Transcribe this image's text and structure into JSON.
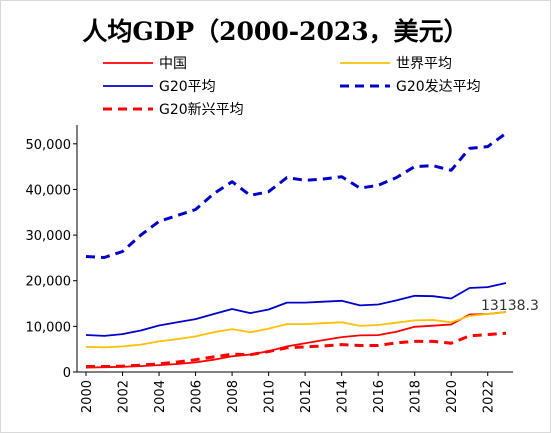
{
  "chart_data": {
    "type": "line",
    "title": "人均GDP（2000-2023，美元）",
    "xlabel": "",
    "ylabel": "",
    "x": [
      2000,
      2001,
      2002,
      2003,
      2004,
      2005,
      2006,
      2007,
      2008,
      2009,
      2010,
      2011,
      2012,
      2013,
      2014,
      2015,
      2016,
      2017,
      2018,
      2019,
      2020,
      2021,
      2022,
      2023
    ],
    "x_tick_labels": [
      "2000",
      "2002",
      "2004",
      "2006",
      "2008",
      "2010",
      "2012",
      "2014",
      "2016",
      "2018",
      "2020",
      "2022"
    ],
    "x_ticks": [
      2000,
      2002,
      2004,
      2006,
      2008,
      2010,
      2012,
      2014,
      2016,
      2018,
      2020,
      2022
    ],
    "xlim": [
      2000,
      2023
    ],
    "ylim": [
      0,
      55000
    ],
    "y_ticks": [
      0,
      10000,
      20000,
      30000,
      40000,
      50000
    ],
    "y_tick_labels": [
      "0",
      "10,000",
      "20,000",
      "30,000",
      "40,000",
      "50,000"
    ],
    "grid": false,
    "legend_position": "top",
    "series": [
      {
        "name": "中国",
        "color": "#ff0000",
        "dash": "solid",
        "values": [
          960,
          1050,
          1150,
          1290,
          1510,
          1750,
          2100,
          2700,
          3450,
          3830,
          4550,
          5600,
          6300,
          7000,
          7650,
          8030,
          8080,
          8820,
          9900,
          10140,
          10410,
          12600,
          12700,
          13138.3
        ]
      },
      {
        "name": "世界平均",
        "color": "#ffc000",
        "dash": "solid",
        "values": [
          5500,
          5400,
          5600,
          6000,
          6700,
          7200,
          7800,
          8700,
          9400,
          8700,
          9500,
          10500,
          10500,
          10700,
          10900,
          10100,
          10300,
          10800,
          11300,
          11400,
          10900,
          12300,
          12700,
          13138
        ]
      },
      {
        "name": "G20平均",
        "color": "#0000cc",
        "dash": "solid",
        "values": [
          8100,
          7900,
          8300,
          9100,
          10200,
          10900,
          11600,
          12700,
          13800,
          12900,
          13700,
          15200,
          15200,
          15400,
          15600,
          14600,
          14800,
          15700,
          16700,
          16600,
          16100,
          18400,
          18600,
          19500
        ]
      },
      {
        "name": "G20发达平均",
        "color": "#0000cc",
        "dash": "dashed",
        "values": [
          25300,
          25100,
          26400,
          30000,
          33000,
          34300,
          35600,
          39100,
          41700,
          38700,
          39500,
          42600,
          42000,
          42300,
          42800,
          40300,
          40900,
          42600,
          45000,
          45200,
          44200,
          49000,
          49400,
          52300
        ]
      },
      {
        "name": "G20新兴平均",
        "color": "#ff0000",
        "dash": "dashed",
        "values": [
          1200,
          1200,
          1300,
          1500,
          1800,
          2200,
          2700,
          3300,
          3900,
          3800,
          4500,
          5300,
          5500,
          5700,
          6000,
          5800,
          5800,
          6400,
          6700,
          6700,
          6300,
          7900,
          8200,
          8500
        ]
      }
    ],
    "annotation": {
      "label": "13138.3",
      "x": 2023,
      "y": 13138.3
    }
  }
}
